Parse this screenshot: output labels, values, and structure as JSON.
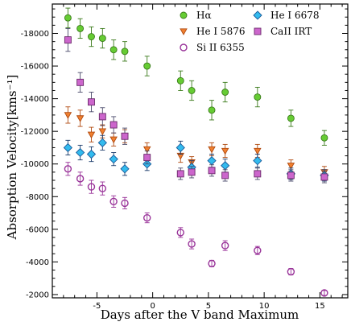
{
  "chart_data": {
    "type": "scatter",
    "xlabel": "Days after the V band Maximum",
    "ylabel": "Absorption Velocity[kms⁻¹]",
    "xlim": [
      -9,
      17.5
    ],
    "ylim": [
      -19800,
      -1800
    ],
    "x_ticks": [
      -5,
      0,
      5,
      10,
      15
    ],
    "y_ticks": [
      -18000,
      -16000,
      -14000,
      -12000,
      -10000,
      -8000,
      -6000,
      -4000,
      -2000
    ],
    "grid": false,
    "legend_position": "top-right",
    "series": [
      {
        "name": "Hα",
        "marker": "circle",
        "color": "#66cc33",
        "points": [
          {
            "x": -7.6,
            "y": -18950,
            "err": 600
          },
          {
            "x": -6.5,
            "y": -18300,
            "err": 600
          },
          {
            "x": -5.5,
            "y": -17800,
            "err": 600
          },
          {
            "x": -4.5,
            "y": -17700,
            "err": 600
          },
          {
            "x": -3.5,
            "y": -17000,
            "err": 600
          },
          {
            "x": -2.5,
            "y": -16900,
            "err": 600
          },
          {
            "x": -0.5,
            "y": -16000,
            "err": 600
          },
          {
            "x": 2.5,
            "y": -15100,
            "err": 600
          },
          {
            "x": 3.5,
            "y": -14500,
            "err": 600
          },
          {
            "x": 5.3,
            "y": -13300,
            "err": 600
          },
          {
            "x": 6.5,
            "y": -14400,
            "err": 600
          },
          {
            "x": 9.4,
            "y": -14100,
            "err": 600
          },
          {
            "x": 12.4,
            "y": -12800,
            "err": 500
          },
          {
            "x": 15.4,
            "y": -11600,
            "err": 450
          }
        ]
      },
      {
        "name": "He I 5876",
        "marker": "triangle-down",
        "color": "#f08030",
        "points": [
          {
            "x": -7.6,
            "y": -13000,
            "err": 500
          },
          {
            "x": -6.5,
            "y": -12800,
            "err": 500
          },
          {
            "x": -5.5,
            "y": -11800,
            "err": 450
          },
          {
            "x": -4.5,
            "y": -12000,
            "err": 400
          },
          {
            "x": -3.5,
            "y": -11500,
            "err": 400
          },
          {
            "x": -2.5,
            "y": -11700,
            "err": 400
          },
          {
            "x": -0.5,
            "y": -10900,
            "err": 400
          },
          {
            "x": 2.5,
            "y": -10500,
            "err": 400
          },
          {
            "x": 3.5,
            "y": -10100,
            "err": 350
          },
          {
            "x": 5.3,
            "y": -10900,
            "err": 400
          },
          {
            "x": 6.5,
            "y": -10800,
            "err": 400
          },
          {
            "x": 9.4,
            "y": -10800,
            "err": 400
          },
          {
            "x": 12.4,
            "y": -9900,
            "err": 350
          },
          {
            "x": 15.4,
            "y": -9500,
            "err": 350
          }
        ]
      },
      {
        "name": "Si II 6355",
        "marker": "circle-open",
        "color": "#993399",
        "points": [
          {
            "x": -7.6,
            "y": -9700,
            "err": 400
          },
          {
            "x": -6.5,
            "y": -9100,
            "err": 400
          },
          {
            "x": -5.5,
            "y": -8600,
            "err": 400
          },
          {
            "x": -4.5,
            "y": -8500,
            "err": 400
          },
          {
            "x": -3.5,
            "y": -7700,
            "err": 350
          },
          {
            "x": -2.5,
            "y": -7600,
            "err": 350
          },
          {
            "x": -0.5,
            "y": -6700,
            "err": 300
          },
          {
            "x": 2.5,
            "y": -5800,
            "err": 300
          },
          {
            "x": 3.5,
            "y": -5100,
            "err": 300
          },
          {
            "x": 5.3,
            "y": -3900,
            "err": 200
          },
          {
            "x": 6.5,
            "y": -5000,
            "err": 300
          },
          {
            "x": 9.4,
            "y": -4700,
            "err": 250
          },
          {
            "x": 12.4,
            "y": -3400,
            "err": 200
          },
          {
            "x": 15.4,
            "y": -2100,
            "err": 150
          }
        ]
      },
      {
        "name": "He I 6678",
        "marker": "diamond",
        "color": "#33bbee",
        "points": [
          {
            "x": -7.6,
            "y": -11000,
            "err": 450
          },
          {
            "x": -6.5,
            "y": -10700,
            "err": 450
          },
          {
            "x": -5.5,
            "y": -10600,
            "err": 450
          },
          {
            "x": -4.5,
            "y": -11300,
            "err": 450
          },
          {
            "x": -3.5,
            "y": -10300,
            "err": 400
          },
          {
            "x": -2.5,
            "y": -9700,
            "err": 400
          },
          {
            "x": -0.5,
            "y": -10000,
            "err": 400
          },
          {
            "x": 2.5,
            "y": -11000,
            "err": 400
          },
          {
            "x": 3.5,
            "y": -9800,
            "err": 400
          },
          {
            "x": 5.3,
            "y": -10200,
            "err": 400
          },
          {
            "x": 6.5,
            "y": -9900,
            "err": 400
          },
          {
            "x": 9.4,
            "y": -10200,
            "err": 400
          },
          {
            "x": 12.4,
            "y": -9400,
            "err": 350
          },
          {
            "x": 15.4,
            "y": -9300,
            "err": 350
          }
        ]
      },
      {
        "name": "CaII IRT",
        "marker": "square",
        "color": "#cc66cc",
        "points": [
          {
            "x": -7.6,
            "y": -17600,
            "err": 700
          },
          {
            "x": -6.5,
            "y": -15000,
            "err": 600
          },
          {
            "x": -5.5,
            "y": -13800,
            "err": 600
          },
          {
            "x": -4.5,
            "y": -12900,
            "err": 550
          },
          {
            "x": -3.5,
            "y": -12400,
            "err": 500
          },
          {
            "x": -2.5,
            "y": -11700,
            "err": 500
          },
          {
            "x": -0.5,
            "y": -10400,
            "err": 400
          },
          {
            "x": 2.5,
            "y": -9400,
            "err": 350
          },
          {
            "x": 3.5,
            "y": -9500,
            "err": 350
          },
          {
            "x": 5.3,
            "y": -9600,
            "err": 350
          },
          {
            "x": 6.5,
            "y": -9300,
            "err": 350
          },
          {
            "x": 9.4,
            "y": -9400,
            "err": 350
          },
          {
            "x": 12.4,
            "y": -9300,
            "err": 350
          },
          {
            "x": 15.4,
            "y": -9200,
            "err": 350
          }
        ]
      }
    ],
    "legend": [
      {
        "series": "Hα",
        "column": 0,
        "row": 0
      },
      {
        "series": "He I 5876",
        "column": 0,
        "row": 1
      },
      {
        "series": "Si II 6355",
        "column": 0,
        "row": 2
      },
      {
        "series": "He I 6678",
        "column": 1,
        "row": 0
      },
      {
        "series": "CaII IRT",
        "column": 1,
        "row": 1
      }
    ]
  }
}
